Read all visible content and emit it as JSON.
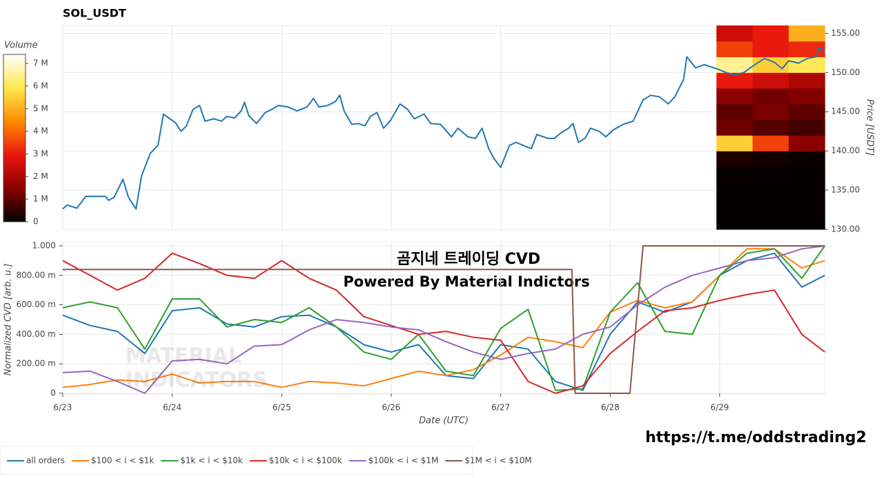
{
  "chart_data": [
    {
      "type": "line",
      "title": "SOL_USDT",
      "ylabel": "Price [USDT]",
      "color": "#1f77b4",
      "xlim": [
        0,
        6.96
      ],
      "ylim": [
        130,
        156
      ],
      "yticks": [
        {
          "value": 130,
          "label": "130.00"
        },
        {
          "value": 135,
          "label": "135.00"
        },
        {
          "value": 140,
          "label": "140.00"
        },
        {
          "value": 145,
          "label": "145.00"
        },
        {
          "value": 150,
          "label": "150.00"
        },
        {
          "value": 155,
          "label": "155.00"
        }
      ],
      "grid": true,
      "x": [
        0,
        0.04,
        0.13,
        0.21,
        0.31,
        0.39,
        0.42,
        0.47,
        0.55,
        0.6,
        0.67,
        0.72,
        0.8,
        0.87,
        0.92,
        0.97,
        1.03,
        1.08,
        1.13,
        1.19,
        1.25,
        1.3,
        1.38,
        1.45,
        1.5,
        1.57,
        1.63,
        1.66,
        1.7,
        1.77,
        1.85,
        1.91,
        1.97,
        2.06,
        2.14,
        2.23,
        2.29,
        2.34,
        2.42,
        2.49,
        2.53,
        2.57,
        2.64,
        2.7,
        2.76,
        2.81,
        2.87,
        2.93,
        2.99,
        3.08,
        3.15,
        3.21,
        3.3,
        3.36,
        3.45,
        3.55,
        3.61,
        3.7,
        3.77,
        3.83,
        3.89,
        3.94,
        4,
        4.08,
        4.14,
        4.24,
        4.28,
        4.33,
        4.43,
        4.49,
        4.55,
        4.62,
        4.66,
        4.71,
        4.77,
        4.82,
        4.9,
        4.96,
        5.03,
        5.12,
        5.21,
        5.3,
        5.37,
        5.45,
        5.53,
        5.59,
        5.67,
        5.7,
        5.78,
        5.86,
        5.97,
        6.06,
        6.13,
        6.22,
        6.31,
        6.41,
        6.5,
        6.57,
        6.63,
        6.72,
        6.8,
        6.88,
        6.91,
        6.96
      ],
      "values": [
        132.6,
        133.1,
        132.7,
        134.2,
        134.2,
        134.2,
        133.7,
        134.1,
        136.4,
        134.1,
        132.6,
        136.8,
        139.7,
        140.7,
        144.7,
        144.2,
        143.6,
        142.5,
        143.2,
        145.3,
        145.8,
        143.8,
        144.1,
        143.8,
        144.4,
        144.2,
        145.1,
        146.2,
        144.5,
        143.5,
        144.9,
        145.3,
        145.8,
        145.6,
        145.1,
        145.6,
        146.7,
        145.6,
        145.8,
        146.3,
        147.1,
        145.1,
        143.4,
        143.5,
        143.2,
        144.4,
        144.9,
        142.9,
        143.8,
        146.0,
        145.3,
        144.1,
        144.7,
        143.5,
        143.4,
        141.8,
        142.9,
        141.8,
        141.6,
        142.9,
        140.3,
        139.0,
        137.9,
        140.7,
        141.1,
        140.5,
        140.3,
        142.1,
        141.6,
        141.6,
        142.3,
        142.9,
        143.5,
        141.1,
        141.6,
        142.9,
        142.5,
        141.8,
        142.7,
        143.4,
        143.8,
        146.5,
        147.1,
        146.9,
        146.0,
        146.9,
        149.1,
        152.0,
        150.6,
        151.0,
        150.5,
        150.0,
        149.7,
        150.0,
        150.9,
        151.8,
        151.3,
        150.5,
        151.5,
        151.2,
        151.8,
        152.0,
        153.2,
        152.8
      ],
      "heatmap": {
        "x_edges": [
          5.97,
          6.3,
          6.63,
          6.96
        ],
        "y_edges": [
          130,
          132,
          134,
          136,
          138,
          140,
          142,
          144,
          146,
          148,
          150,
          152,
          154,
          156
        ],
        "values": [
          [
            50000,
            50000,
            50000
          ],
          [
            50000,
            50000,
            50000
          ],
          [
            50000,
            50000,
            50000
          ],
          [
            80000,
            60000,
            50000
          ],
          [
            300000,
            200000,
            100000
          ],
          [
            5500000,
            3500000,
            1500000
          ],
          [
            1200000,
            900000,
            700000
          ],
          [
            1000000,
            1300000,
            1000000
          ],
          [
            1500000,
            1200000,
            1400000
          ],
          [
            3000000,
            2500000,
            2000000
          ],
          [
            6500000,
            5500000,
            6000000
          ],
          [
            3500000,
            3000000,
            3200000
          ],
          [
            2500000,
            3000000,
            5000000
          ]
        ],
        "colorbar": {
          "title": "Volume",
          "lim": [
            0,
            7400000
          ],
          "colors": [
            "#000000",
            "#8b0000",
            "#e8160c",
            "#ff8c00",
            "#ffe84d",
            "#ffffff"
          ],
          "ticks": [
            0,
            {
              "value": 1000000,
              "label": "1 M"
            },
            {
              "value": 2000000,
              "label": "2 M"
            },
            {
              "value": 3000000,
              "label": "3 M"
            },
            {
              "value": 4000000,
              "label": "4 M"
            },
            {
              "value": 5000000,
              "label": "5 M"
            },
            {
              "value": 6000000,
              "label": "6 M"
            },
            {
              "value": 7000000,
              "label": "7 M"
            }
          ]
        }
      }
    },
    {
      "type": "line",
      "xlabel": "Date (UTC)",
      "ylabel": "Normalized CVD [arb. u.]",
      "xlim": [
        0,
        6.96
      ],
      "ylim": [
        0,
        1
      ],
      "xticks": [
        {
          "value": 0,
          "label": "6/23"
        },
        {
          "value": 1,
          "label": "6/24"
        },
        {
          "value": 2,
          "label": "6/25"
        },
        {
          "value": 3,
          "label": "6/26"
        },
        {
          "value": 4,
          "label": "6/27"
        },
        {
          "value": 5,
          "label": "6/28"
        },
        {
          "value": 6,
          "label": "6/29"
        }
      ],
      "yticks": [
        0,
        {
          "value": 0.2,
          "label": "200.00 m"
        },
        {
          "value": 0.4,
          "label": "400.00 m"
        },
        {
          "value": 0.6,
          "label": "600.00 m"
        },
        {
          "value": 0.8,
          "label": "800.00 m"
        },
        {
          "value": 1,
          "label": "1.000"
        }
      ],
      "grid": true,
      "legend": "bottom-left",
      "annotations": [
        "곰지네 트레이딩 CVD",
        "Powered By Material Indictors"
      ],
      "x": [
        0,
        0.25,
        0.5,
        0.75,
        1,
        1.25,
        1.5,
        1.75,
        2,
        2.25,
        2.5,
        2.75,
        3,
        3.25,
        3.5,
        3.75,
        4,
        4.25,
        4.5,
        4.75,
        5,
        5.25,
        5.5,
        5.75,
        6,
        6.25,
        6.5,
        6.75,
        6.96
      ],
      "series": [
        {
          "name": "all orders",
          "color": "#1f77b4",
          "values": [
            0.53,
            0.46,
            0.42,
            0.27,
            0.56,
            0.58,
            0.47,
            0.45,
            0.52,
            0.53,
            0.45,
            0.33,
            0.28,
            0.33,
            0.12,
            0.1,
            0.33,
            0.3,
            0.08,
            0.02,
            0.4,
            0.62,
            0.55,
            0.62,
            0.8,
            0.9,
            0.95,
            0.72,
            0.8
          ]
        },
        {
          "name": "$100 < i < $1k",
          "color": "#ff7f0e",
          "values": [
            0.04,
            0.06,
            0.09,
            0.08,
            0.13,
            0.07,
            0.08,
            0.08,
            0.04,
            0.08,
            0.07,
            0.05,
            0.1,
            0.15,
            0.12,
            0.16,
            0.26,
            0.38,
            0.35,
            0.31,
            0.55,
            0.63,
            0.58,
            0.62,
            0.8,
            0.98,
            0.98,
            0.85,
            0.9
          ]
        },
        {
          "name": "$1k < i < $10k",
          "color": "#2ca02c",
          "values": [
            0.58,
            0.62,
            0.58,
            0.3,
            0.64,
            0.64,
            0.45,
            0.5,
            0.48,
            0.58,
            0.45,
            0.28,
            0.23,
            0.4,
            0.15,
            0.12,
            0.44,
            0.57,
            0.02,
            0.03,
            0.55,
            0.75,
            0.42,
            0.4,
            0.8,
            0.95,
            0.98,
            0.78,
            1.0
          ]
        },
        {
          "name": "$10k < i < $100k",
          "color": "#d62728",
          "values": [
            0.9,
            0.8,
            0.7,
            0.78,
            0.95,
            0.88,
            0.8,
            0.78,
            0.9,
            0.78,
            0.7,
            0.52,
            0.46,
            0.4,
            0.42,
            0.38,
            0.36,
            0.08,
            0,
            0.05,
            0.27,
            0.42,
            0.56,
            0.58,
            0.63,
            0.67,
            0.7,
            0.4,
            0.28
          ]
        },
        {
          "name": "$100k < i < $1M",
          "color": "#9467bd",
          "values": [
            0.14,
            0.15,
            0.08,
            0,
            0.22,
            0.23,
            0.2,
            0.32,
            0.33,
            0.43,
            0.5,
            0.48,
            0.45,
            0.43,
            0.35,
            0.28,
            0.23,
            0.27,
            0.3,
            0.4,
            0.45,
            0.6,
            0.72,
            0.8,
            0.85,
            0.9,
            0.92,
            0.98,
            1.0
          ]
        },
        {
          "name": "$1M < i < $10M",
          "color": "#8c564b",
          "x": [
            0,
            4.65,
            4.68,
            5.18,
            5.3,
            6.96
          ],
          "values": [
            0.84,
            0.84,
            0,
            0,
            1,
            1
          ]
        }
      ]
    }
  ],
  "watermark": [
    "MATERIAL",
    "INDICATORS"
  ],
  "footer": "https://t.me/oddstrading2"
}
